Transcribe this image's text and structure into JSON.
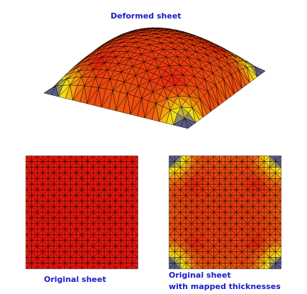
{
  "captions": {
    "deformed": "Deformed sheet",
    "original": "Original sheet",
    "mapped_line1": "Original sheet",
    "mapped_line2": "with mapped thicknesses"
  },
  "colors": {
    "caption": "#1a1ac8",
    "uniform_thickness": "#e8160e",
    "mesh_line": "#000000",
    "colormap": [
      "#e8160e",
      "#ea3f0e",
      "#ee700e",
      "#f6b814",
      "#f2e418",
      "#5a5a8c"
    ]
  },
  "mesh": {
    "divisions": 20
  }
}
